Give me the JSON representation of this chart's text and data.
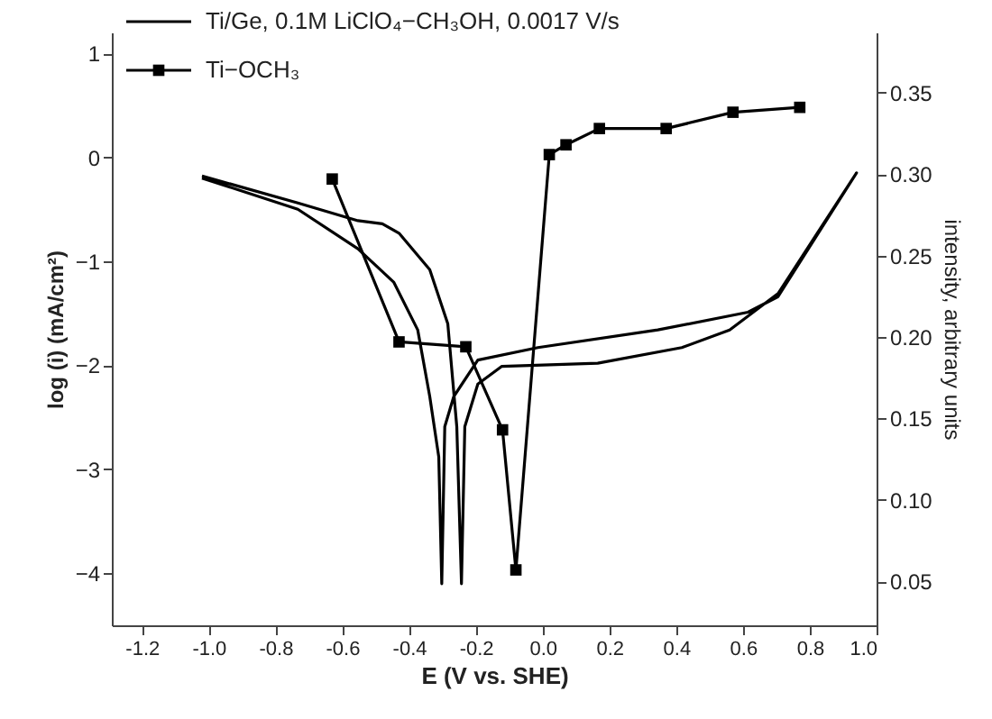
{
  "chart_data": {
    "type": "line",
    "xlabel": "E (V vs. SHE)",
    "ylabel": "log (i) (mA/cm²)",
    "y2label": "intensity, arbitrary units",
    "xlim": [
      -1.29,
      1.0
    ],
    "xticks": [
      {
        "value": -1.2,
        "label": "-1.2"
      },
      {
        "value": -1.0,
        "label": "-1.0"
      },
      {
        "value": -0.8,
        "label": "-0.8"
      },
      {
        "value": -0.6,
        "label": "-0.6"
      },
      {
        "value": -0.4,
        "label": "-0.4"
      },
      {
        "value": -0.2,
        "label": "-0.2"
      },
      {
        "value": 0,
        "label": "0.0"
      },
      {
        "value": 0.2,
        "label": "0.2"
      },
      {
        "value": 0.4,
        "label": "0.4"
      },
      {
        "value": 0.6,
        "label": "0.6"
      },
      {
        "value": 0.8,
        "label": "0.8"
      },
      {
        "value": 1.0,
        "label": "1.0"
      }
    ],
    "ylim": [
      -4.5,
      1.2
    ],
    "yticks": [
      -4,
      -3,
      -2,
      -1,
      0,
      1
    ],
    "y2lim": [
      0.023,
      0.387
    ],
    "y2ticks": [
      0.05,
      {
        "value": 0.1,
        "label": "0.10"
      },
      0.15,
      {
        "value": 0.2,
        "label": "0.20"
      },
      0.25,
      {
        "value": 0.3,
        "label": "0.30"
      },
      0.35
    ],
    "grid": false,
    "legend": "top left",
    "series": [
      {
        "name": "Ti/Ge, 0.1M LiClO₄−CH₃OH, 0.0017 V/s",
        "color": "#000000",
        "marker": "none",
        "x": [
          -1.02,
          -0.733,
          -0.553,
          -0.446,
          -0.374,
          -0.338,
          -0.311,
          -0.302,
          -0.293,
          -0.266,
          -0.194,
          -0.014,
          0.345,
          0.615,
          0.705,
          0.94,
          0.705,
          0.56,
          0.417,
          0.165,
          -0.122,
          -0.194,
          -0.233,
          -0.243,
          -0.257,
          -0.284,
          -0.338,
          -0.43,
          -0.48,
          -0.553,
          -0.733,
          -1.02
        ],
        "values": [
          -0.2,
          -0.5,
          -0.88,
          -1.2,
          -1.66,
          -2.3,
          -2.88,
          -4.1,
          -2.59,
          -2.3,
          -1.95,
          -1.83,
          -1.66,
          -1.49,
          -1.34,
          -0.15,
          -1.31,
          -1.66,
          -1.83,
          -1.98,
          -2.01,
          -2.18,
          -2.59,
          -4.1,
          -2.59,
          -1.6,
          -1.08,
          -0.73,
          -0.64,
          -0.61,
          -0.44,
          -0.18
        ]
      },
      {
        "name": "Ti−OCH₃",
        "color": "#000000",
        "marker": "square",
        "axis": "y2",
        "x": [
          -0.63,
          -0.43,
          -0.23,
          -0.12,
          -0.08,
          0.02,
          0.07,
          0.17,
          0.37,
          0.57,
          0.77
        ],
        "values": [
          0.297,
          0.197,
          0.194,
          0.143,
          0.057,
          0.312,
          0.318,
          0.328,
          0.328,
          0.338,
          0.341
        ]
      }
    ]
  }
}
